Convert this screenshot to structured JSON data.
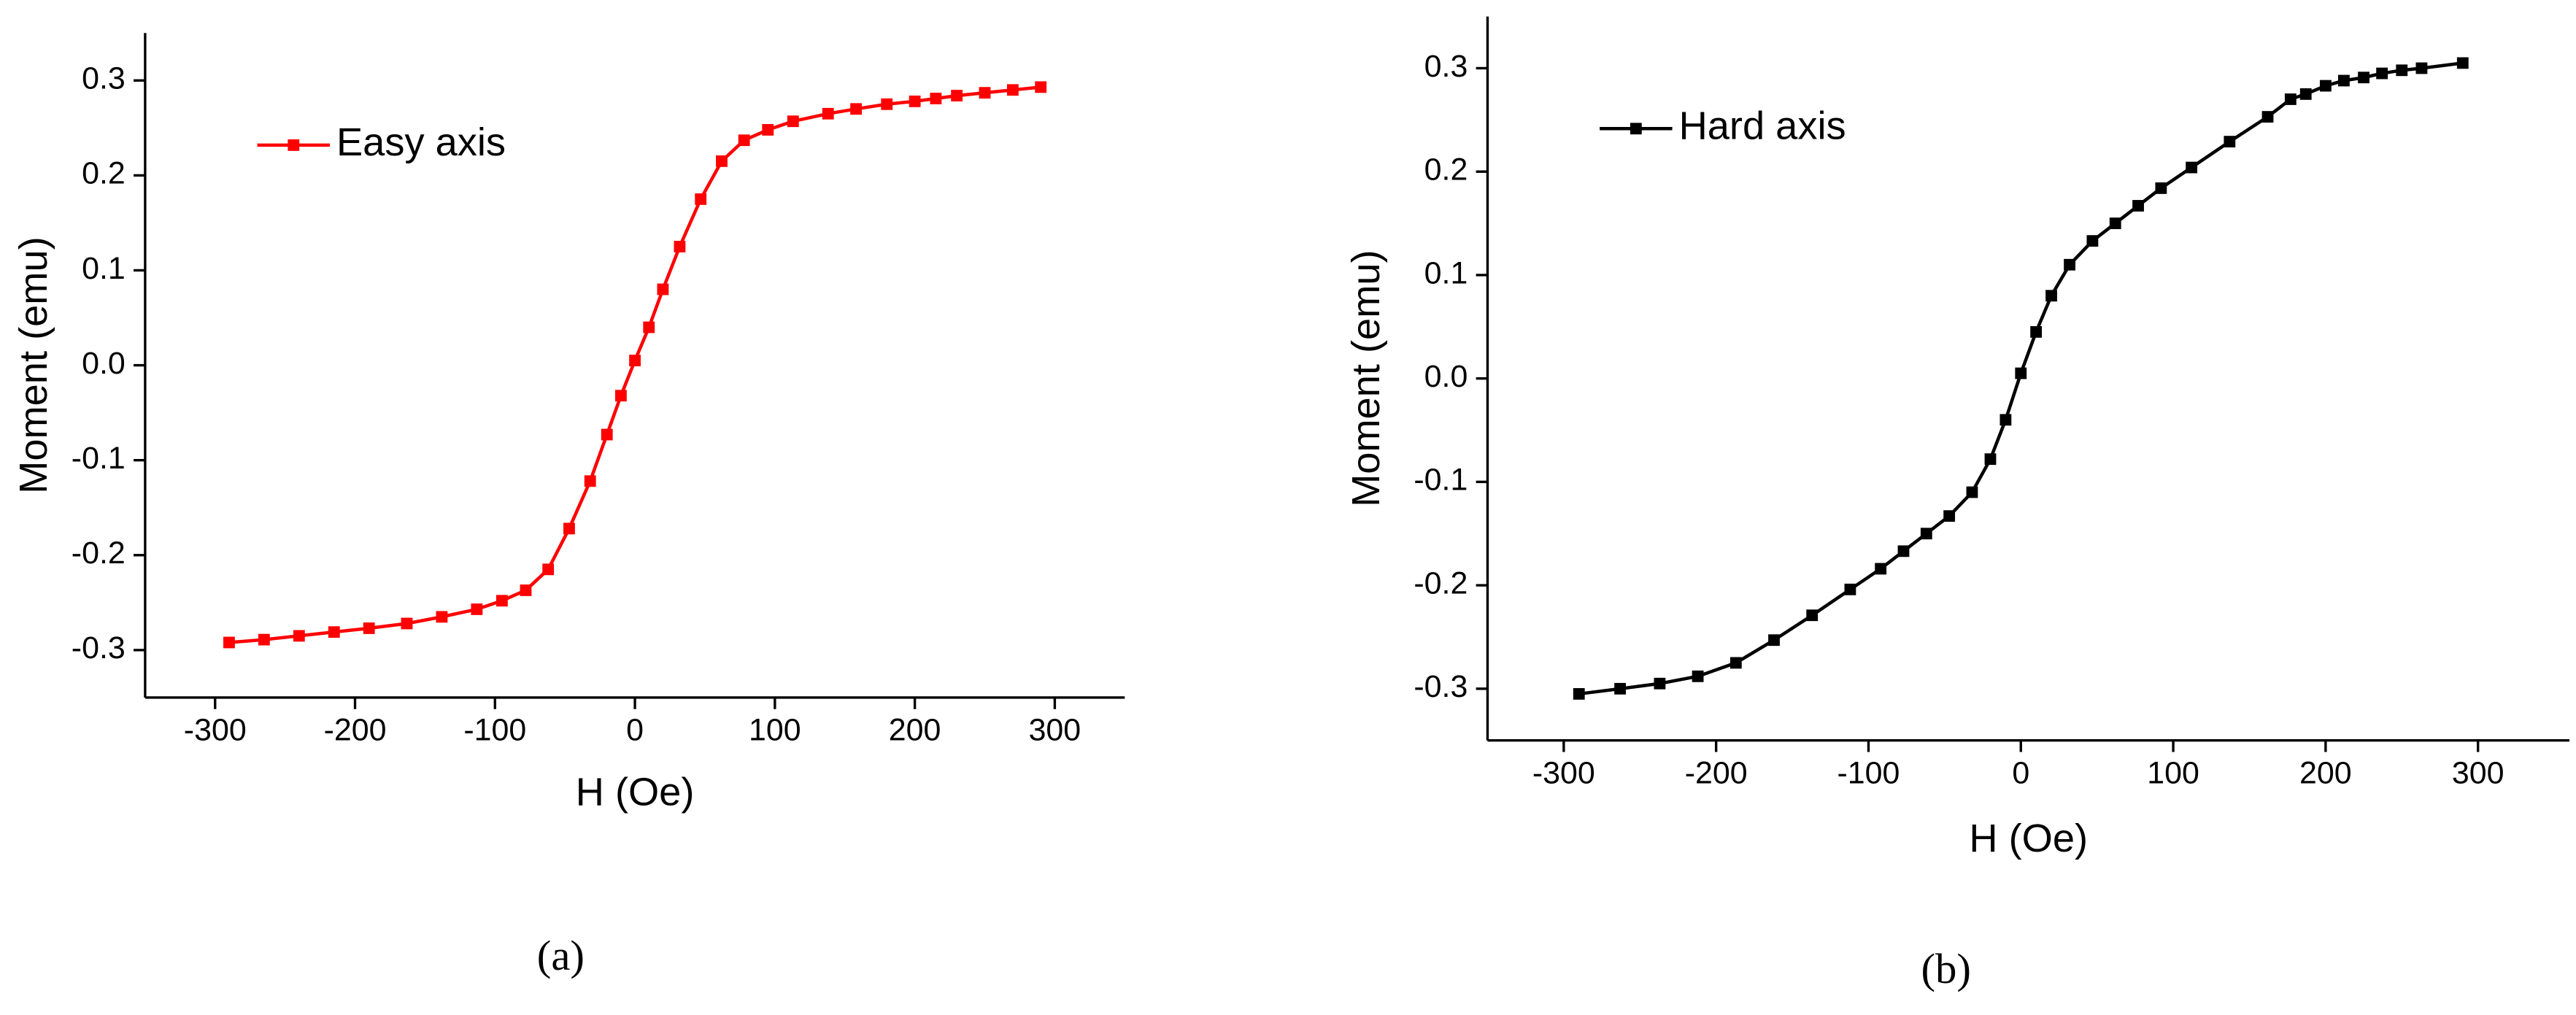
{
  "chart_data": [
    {
      "type": "line",
      "caption": "(a)",
      "x_label": "H (Oe)",
      "y_label": "Moment (emu)",
      "legend": "upper left",
      "x": [
        -290,
        -265,
        -240,
        -215,
        -190,
        -163,
        -138,
        -113,
        -95,
        -78,
        -62,
        -47,
        -32,
        -20,
        -10,
        0,
        10,
        20,
        32,
        47,
        62,
        78,
        95,
        113,
        138,
        158,
        180,
        200,
        215,
        230,
        250,
        270,
        290
      ],
      "series": [
        {
          "name": "Easy axis",
          "color": "#ff0000",
          "values": [
            -0.292,
            -0.289,
            -0.285,
            -0.281,
            -0.277,
            -0.272,
            -0.265,
            -0.257,
            -0.248,
            -0.237,
            -0.215,
            -0.172,
            -0.122,
            -0.073,
            -0.032,
            0.005,
            0.04,
            0.08,
            0.125,
            0.175,
            0.215,
            0.237,
            0.248,
            0.257,
            0.265,
            0.27,
            0.275,
            0.278,
            0.281,
            0.284,
            0.287,
            0.29,
            0.293
          ]
        }
      ],
      "xlim": [
        -350,
        350
      ],
      "xticks": [
        -300,
        -200,
        -100,
        0,
        100,
        200,
        300
      ],
      "ylim": [
        -0.35,
        0.35
      ],
      "yticks": [
        -0.3,
        -0.2,
        -0.1,
        {
          "value": 0,
          "label": "0.0"
        },
        0.1,
        0.2,
        0.3
      ]
    },
    {
      "type": "line",
      "caption": "(b)",
      "x_label": "H (Oe)",
      "y_label": "Moment (emu)",
      "legend": "upper left",
      "x": [
        -290,
        -263,
        -237,
        -212,
        -187,
        -162,
        -137,
        -112,
        -92,
        -77,
        -62,
        -47,
        -32,
        -20,
        -10,
        0,
        10,
        20,
        32,
        47,
        62,
        77,
        92,
        112,
        137,
        162,
        177,
        187,
        200,
        212,
        225,
        237,
        250,
        263,
        290
      ],
      "series": [
        {
          "name": "Hard axis",
          "color": "#000000",
          "values": [
            -0.305,
            -0.3,
            -0.295,
            -0.288,
            -0.275,
            -0.253,
            -0.229,
            -0.204,
            -0.184,
            -0.167,
            -0.15,
            -0.133,
            -0.11,
            -0.078,
            -0.04,
            0.005,
            0.045,
            0.08,
            0.11,
            0.133,
            0.15,
            0.167,
            0.184,
            0.204,
            0.229,
            0.253,
            0.27,
            0.275,
            0.283,
            0.288,
            0.291,
            0.295,
            0.298,
            0.3,
            0.305
          ]
        }
      ],
      "xlim": [
        -350,
        360
      ],
      "xticks": [
        -300,
        -200,
        -100,
        0,
        100,
        200,
        300
      ],
      "ylim": [
        -0.35,
        0.35
      ],
      "yticks": [
        -0.3,
        -0.2,
        -0.1,
        {
          "value": 0,
          "label": "0.0"
        },
        0.1,
        0.2,
        0.3
      ]
    }
  ]
}
